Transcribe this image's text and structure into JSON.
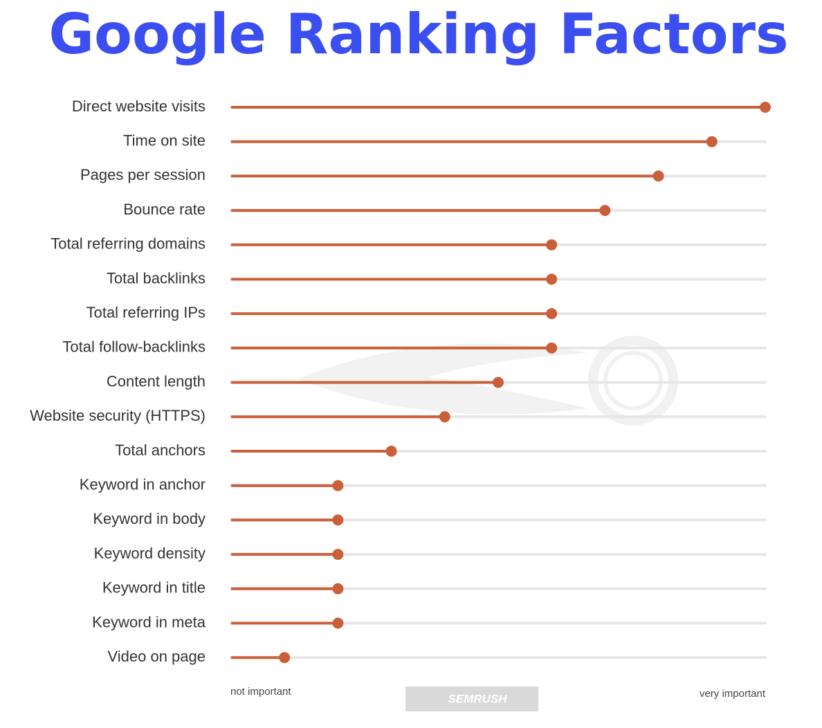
{
  "chart_data": {
    "type": "lollipop",
    "title": "Google Ranking Factors",
    "categories": [
      "Direct website visits",
      "Time on site",
      "Pages per session",
      "Bounce rate",
      "Total referring domains",
      "Total backlinks",
      "Total referring IPs",
      "Total follow-backlinks",
      "Content length",
      "Website security (HTTPS)",
      "Total anchors",
      "Keyword in anchor",
      "Keyword in body",
      "Keyword density",
      "Keyword in title",
      "Keyword in meta",
      "Video on page"
    ],
    "values": [
      10,
      9,
      8,
      7,
      6,
      6,
      6,
      6,
      5,
      4,
      3,
      2,
      2,
      2,
      2,
      2,
      1
    ],
    "color": "#c9603a",
    "track_color": "#e6e6e6",
    "xlim": [
      0,
      10
    ],
    "axis_labels": [
      "not important",
      "very important"
    ],
    "watermark": "SEMRUSH"
  }
}
